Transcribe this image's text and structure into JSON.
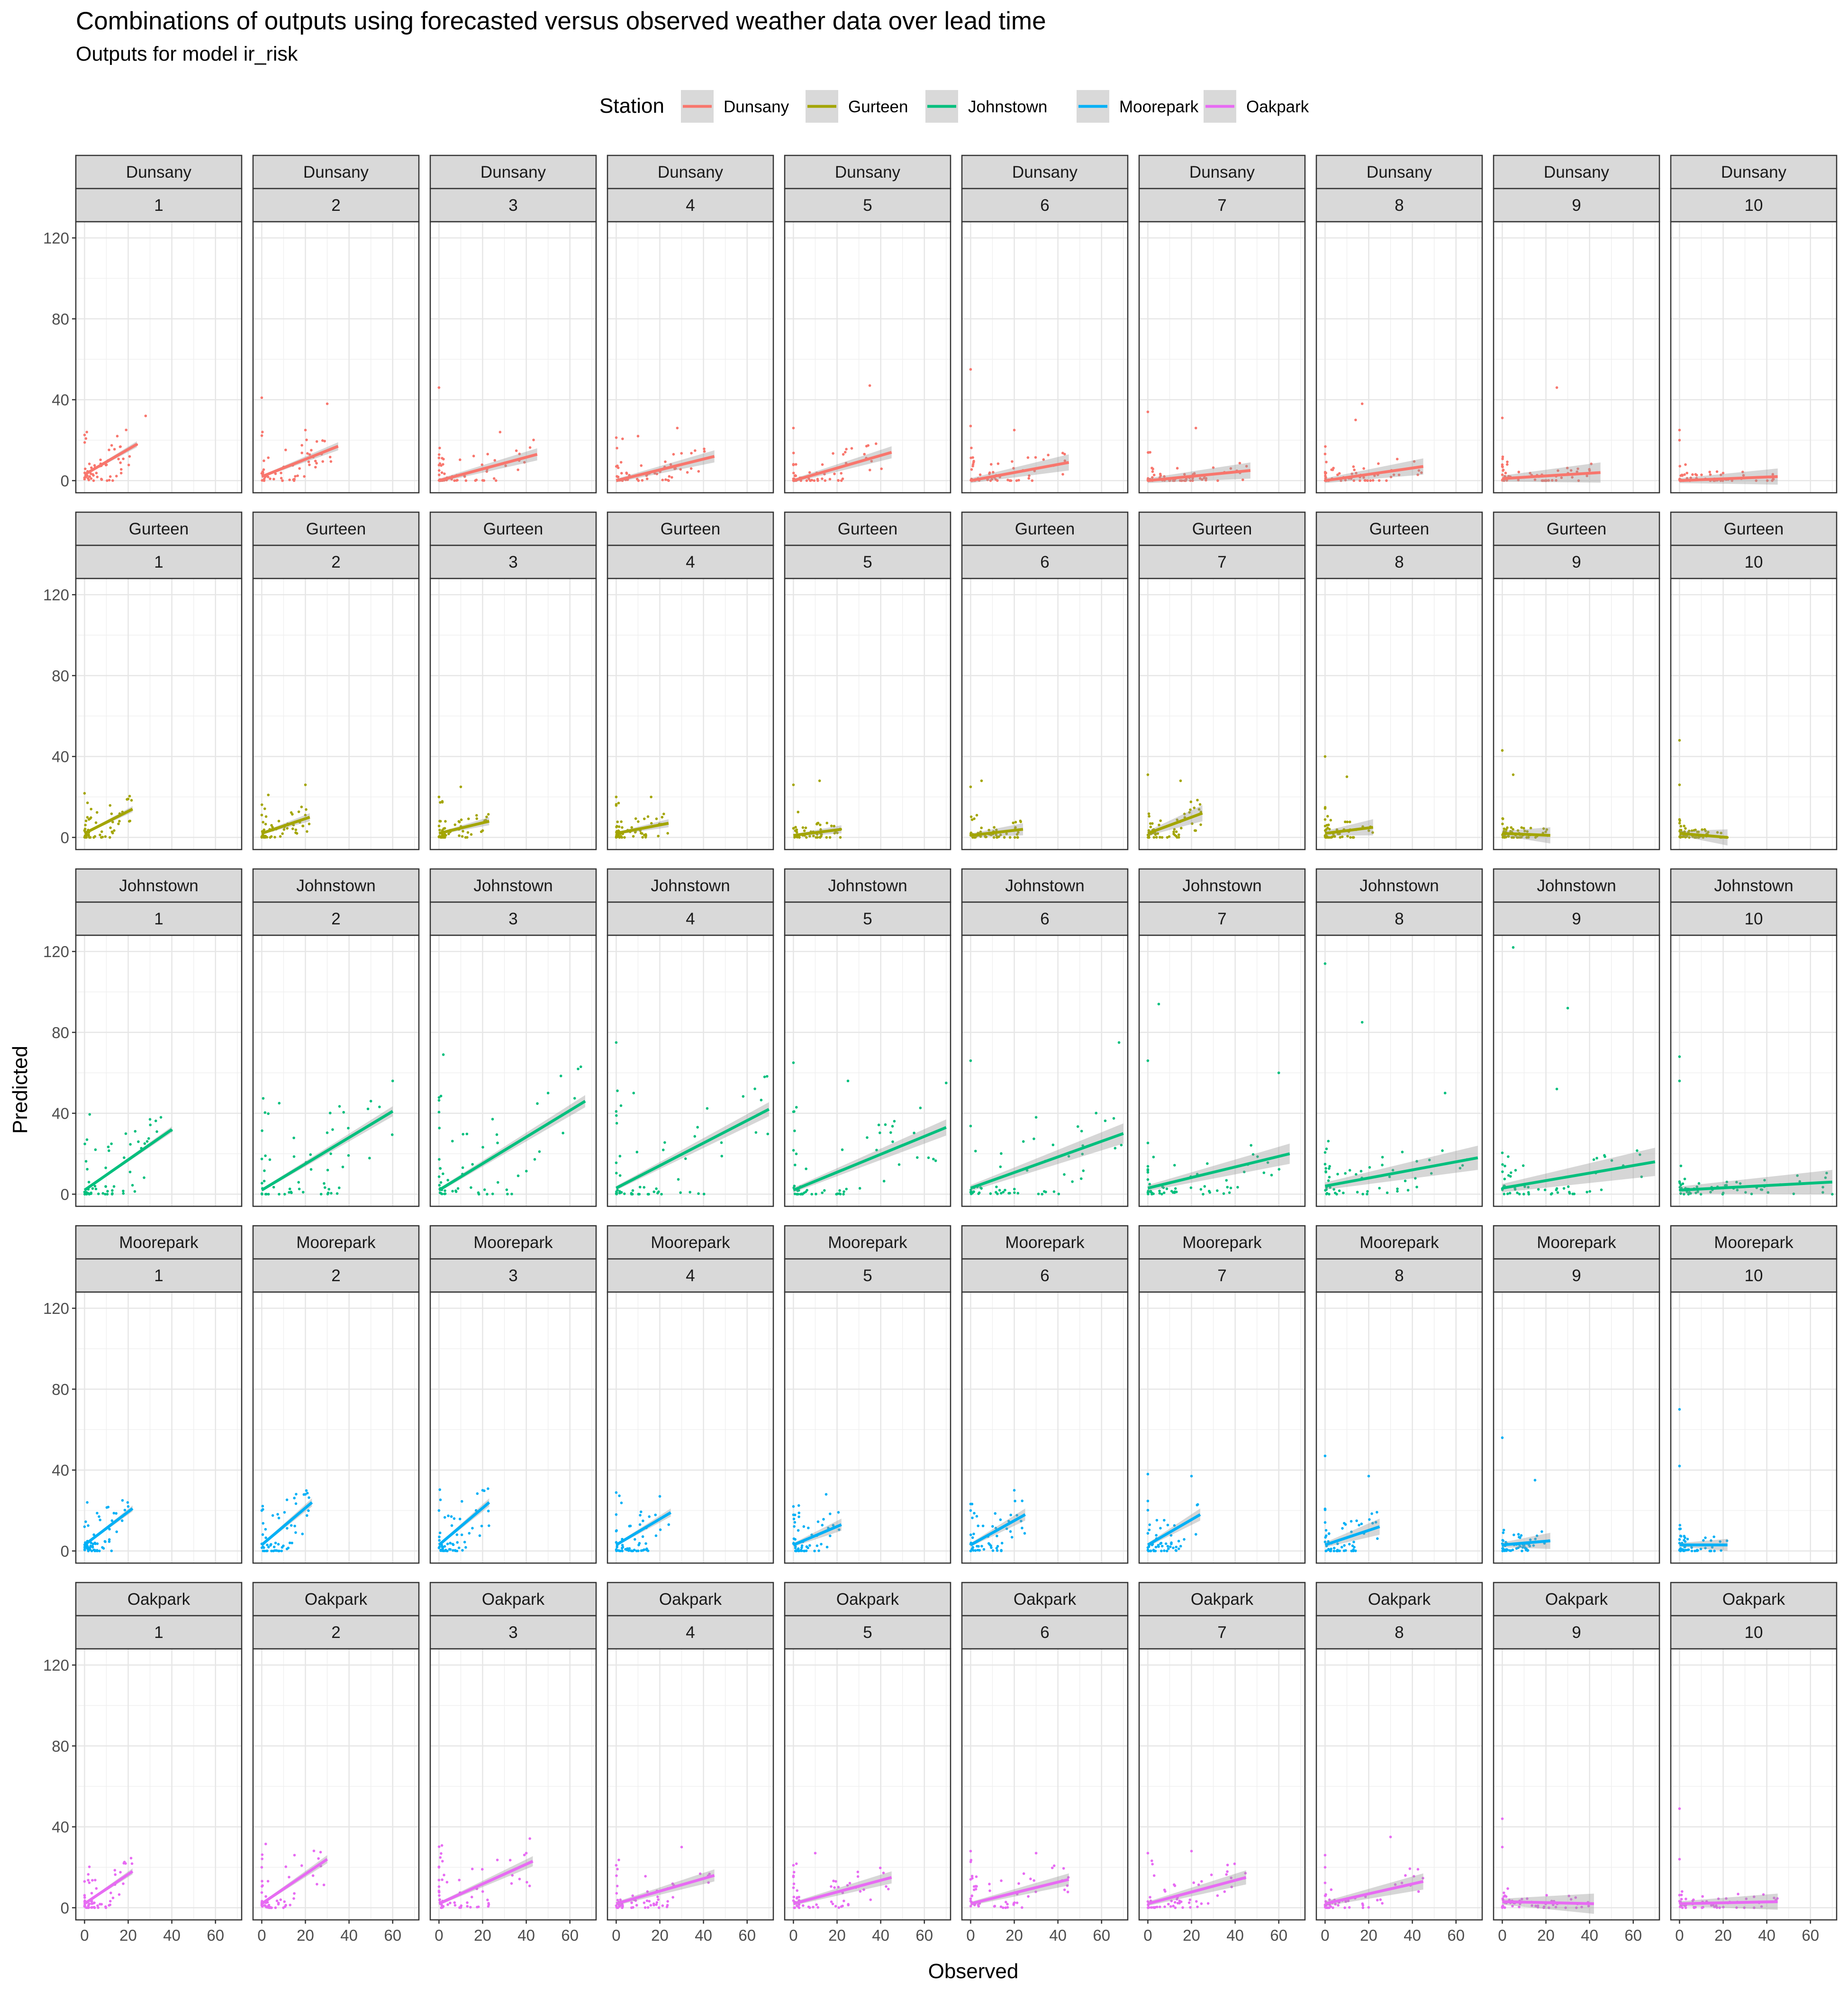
{
  "chart_data": {
    "type": "scatter",
    "title": "Combinations of outputs using forecasted versus observed weather data over lead time",
    "subtitle": "Outputs for model ir_risk",
    "xlabel": "Observed",
    "ylabel": "Predicted",
    "xlim": [
      -4,
      72
    ],
    "ylim": [
      -6,
      128
    ],
    "x_ticks": [
      0,
      20,
      40,
      60
    ],
    "y_ticks": [
      0,
      40,
      80,
      120
    ],
    "grid": true,
    "legend": {
      "title": "Station",
      "position": "top"
    },
    "colors": {
      "Dunsany": "#F8766D",
      "Gurteen": "#A3A500",
      "Johnstown": "#00BF7D",
      "Moorepark": "#00B0F6",
      "Oakpark": "#E76BF3"
    },
    "facet_rows": [
      "Dunsany",
      "Gurteen",
      "Johnstown",
      "Moorepark",
      "Oakpark"
    ],
    "facet_cols": [
      "1",
      "2",
      "3",
      "4",
      "5",
      "6",
      "7",
      "8",
      "9",
      "10"
    ],
    "trend_lines": {
      "Dunsany": [
        [
          0,
          3,
          24,
          18
        ],
        [
          0,
          2,
          35,
          17
        ],
        [
          0,
          0,
          45,
          13
        ],
        [
          0,
          0,
          45,
          12
        ],
        [
          0,
          0,
          45,
          14
        ],
        [
          0,
          0,
          45,
          9
        ],
        [
          0,
          0,
          47,
          5
        ],
        [
          0,
          0,
          45,
          7
        ],
        [
          0,
          1,
          45,
          4
        ],
        [
          0,
          0,
          45,
          2
        ]
      ],
      "Gurteen": [
        [
          0,
          2,
          22,
          14
        ],
        [
          0,
          2,
          22,
          10
        ],
        [
          0,
          2,
          23,
          8
        ],
        [
          0,
          2,
          24,
          7
        ],
        [
          0,
          1,
          22,
          4
        ],
        [
          0,
          1,
          24,
          4
        ],
        [
          0,
          2,
          25,
          12
        ],
        [
          0,
          2,
          22,
          5
        ],
        [
          0,
          2,
          22,
          1
        ],
        [
          0,
          2,
          22,
          0
        ]
      ],
      "Johnstown": [
        [
          0,
          2,
          40,
          32
        ],
        [
          0,
          2,
          60,
          41
        ],
        [
          0,
          2,
          67,
          46
        ],
        [
          0,
          3,
          70,
          42
        ],
        [
          0,
          2,
          70,
          33
        ],
        [
          0,
          3,
          70,
          30
        ],
        [
          0,
          3,
          65,
          20
        ],
        [
          0,
          4,
          70,
          18
        ],
        [
          0,
          3,
          70,
          16
        ],
        [
          0,
          2,
          70,
          6
        ]
      ],
      "Moorepark": [
        [
          0,
          3,
          22,
          21
        ],
        [
          0,
          3,
          23,
          24
        ],
        [
          0,
          3,
          23,
          24
        ],
        [
          0,
          3,
          25,
          19
        ],
        [
          0,
          3,
          22,
          13
        ],
        [
          0,
          3,
          25,
          18
        ],
        [
          0,
          3,
          24,
          18
        ],
        [
          0,
          3,
          25,
          12
        ],
        [
          0,
          3,
          22,
          5
        ],
        [
          0,
          3,
          22,
          3
        ]
      ],
      "Oakpark": [
        [
          0,
          2,
          22,
          18
        ],
        [
          0,
          2,
          30,
          24
        ],
        [
          0,
          2,
          43,
          23
        ],
        [
          0,
          2,
          45,
          16
        ],
        [
          0,
          2,
          45,
          15
        ],
        [
          0,
          2,
          45,
          14
        ],
        [
          0,
          2,
          45,
          15
        ],
        [
          0,
          2,
          45,
          13
        ],
        [
          0,
          3,
          42,
          2
        ],
        [
          0,
          2,
          45,
          3
        ]
      ]
    },
    "ribbon_width": [
      [
        1.5,
        2,
        3,
        3,
        3,
        4,
        4,
        4,
        5,
        4
      ],
      [
        1.5,
        2,
        2,
        2,
        2,
        3,
        4,
        4,
        4,
        4
      ],
      [
        1.5,
        2.5,
        3,
        3.5,
        4,
        5,
        5,
        6,
        7,
        6
      ],
      [
        1.5,
        2,
        2,
        2,
        3,
        3,
        3,
        4,
        4,
        3
      ],
      [
        1.5,
        2,
        2.5,
        3,
        3,
        3,
        3.5,
        4,
        5,
        4
      ]
    ],
    "outliers": {
      "Dunsany": [
        [
          [
            28,
            32
          ],
          [
            15,
            22
          ]
        ],
        [
          [
            30,
            38
          ],
          [
            0,
            41
          ],
          [
            20,
            25
          ]
        ],
        [
          [
            0,
            46
          ],
          [
            28,
            24
          ]
        ],
        [
          [
            10,
            22
          ],
          [
            28,
            26
          ],
          [
            25,
            8
          ]
        ],
        [
          [
            35,
            47
          ],
          [
            0,
            26
          ]
        ],
        [
          [
            0,
            55
          ],
          [
            0,
            27
          ],
          [
            20,
            25
          ]
        ],
        [
          [
            0,
            34
          ],
          [
            22,
            26
          ],
          [
            38,
            6
          ]
        ],
        [
          [
            17,
            38
          ],
          [
            14,
            30
          ],
          [
            43,
            5
          ]
        ],
        [
          [
            25,
            46
          ],
          [
            0,
            31
          ],
          [
            40,
            5
          ]
        ],
        [
          [
            0,
            25
          ],
          [
            0,
            20
          ]
        ]
      ],
      "Gurteen": [
        [
          [
            20,
            19
          ],
          [
            3,
            14
          ]
        ],
        [
          [
            3,
            21
          ],
          [
            20,
            26
          ]
        ],
        [
          [
            10,
            25
          ],
          [
            0,
            20
          ]
        ],
        [
          [
            0,
            20
          ],
          [
            16,
            20
          ]
        ],
        [
          [
            12,
            28
          ],
          [
            0,
            26
          ]
        ],
        [
          [
            5,
            28
          ],
          [
            0,
            25
          ]
        ],
        [
          [
            0,
            31
          ],
          [
            15,
            28
          ]
        ],
        [
          [
            0,
            40
          ],
          [
            10,
            30
          ]
        ],
        [
          [
            0,
            43
          ],
          [
            5,
            31
          ]
        ],
        [
          [
            0,
            48
          ],
          [
            0,
            26
          ]
        ]
      ],
      "Johnstown": [
        [
          [
            30,
            37
          ],
          [
            35,
            38
          ],
          [
            5,
            22
          ]
        ],
        [
          [
            60,
            56
          ],
          [
            8,
            45
          ],
          [
            50,
            46
          ]
        ],
        [
          [
            2,
            69
          ],
          [
            65,
            63
          ],
          [
            50,
            50
          ]
        ],
        [
          [
            0,
            75
          ],
          [
            8,
            50
          ],
          [
            68,
            58
          ]
        ],
        [
          [
            0,
            65
          ],
          [
            70,
            55
          ],
          [
            25,
            56
          ]
        ],
        [
          [
            0,
            66
          ],
          [
            68,
            75
          ],
          [
            30,
            38
          ]
        ],
        [
          [
            5,
            94
          ],
          [
            0,
            66
          ],
          [
            60,
            60
          ]
        ],
        [
          [
            0,
            114
          ],
          [
            17,
            85
          ],
          [
            55,
            50
          ]
        ],
        [
          [
            5,
            122
          ],
          [
            30,
            92
          ],
          [
            25,
            52
          ]
        ],
        [
          [
            0,
            68
          ],
          [
            0,
            56
          ],
          [
            70,
            0
          ]
        ]
      ],
      "Moorepark": [
        [
          [
            20,
            22
          ],
          [
            0,
            12
          ]
        ],
        [
          [
            20,
            28
          ],
          [
            0,
            20
          ]
        ],
        [
          [
            20,
            30
          ],
          [
            0,
            20
          ]
        ],
        [
          [
            20,
            27
          ],
          [
            0,
            18
          ]
        ],
        [
          [
            15,
            28
          ],
          [
            0,
            22
          ]
        ],
        [
          [
            20,
            30
          ],
          [
            0,
            20
          ]
        ],
        [
          [
            20,
            37
          ],
          [
            0,
            38
          ]
        ],
        [
          [
            0,
            47
          ],
          [
            20,
            37
          ]
        ],
        [
          [
            0,
            56
          ],
          [
            15,
            35
          ]
        ],
        [
          [
            0,
            70
          ],
          [
            0,
            42
          ]
        ]
      ],
      "Oakpark": [
        [
          [
            18,
            22
          ],
          [
            0,
            13
          ]
        ],
        [
          [
            15,
            26
          ],
          [
            0,
            20
          ]
        ],
        [
          [
            40,
            27
          ],
          [
            0,
            20
          ]
        ],
        [
          [
            30,
            30
          ],
          [
            0,
            21
          ]
        ],
        [
          [
            10,
            27
          ],
          [
            0,
            21
          ]
        ],
        [
          [
            0,
            28
          ],
          [
            30,
            27
          ]
        ],
        [
          [
            20,
            28
          ],
          [
            0,
            27
          ]
        ],
        [
          [
            30,
            35
          ],
          [
            0,
            26
          ]
        ],
        [
          [
            0,
            44
          ],
          [
            0,
            30
          ]
        ],
        [
          [
            0,
            49
          ],
          [
            0,
            24
          ]
        ]
      ]
    }
  }
}
